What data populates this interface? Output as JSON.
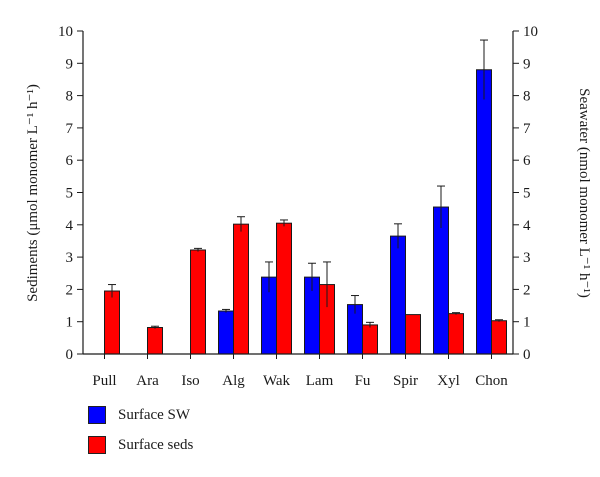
{
  "chart_data": {
    "type": "bar",
    "categories": [
      "Pull",
      "Ara",
      "Iso",
      "Alg",
      "Wak",
      "Lam",
      "Fu",
      "Spir",
      "Xyl",
      "Chon"
    ],
    "series": [
      {
        "name": "Surface SW",
        "color": "#0000ff",
        "axis": "right",
        "values": [
          null,
          null,
          null,
          1.33,
          2.38,
          2.38,
          1.53,
          3.65,
          4.55,
          8.8
        ],
        "errors": [
          null,
          null,
          null,
          0.05,
          0.47,
          0.43,
          0.28,
          0.38,
          0.65,
          0.92
        ]
      },
      {
        "name": "Surface seds",
        "color": "#ff0000",
        "axis": "left",
        "values": [
          1.95,
          0.82,
          3.22,
          4.02,
          4.05,
          2.15,
          0.9,
          1.22,
          1.25,
          1.03
        ],
        "errors": [
          0.2,
          0.04,
          0.05,
          0.23,
          0.1,
          0.7,
          0.08,
          0.0,
          0.03,
          0.03
        ]
      }
    ],
    "ylabel": "Sediments (μmol monomer L⁻¹ h⁻¹)",
    "y2label": "Seawater (nmol monomer L⁻¹ h⁻¹)",
    "ylim": [
      0,
      10
    ],
    "y2lim": [
      0,
      10
    ],
    "yticks": [
      "0",
      "1",
      "2",
      "3",
      "4",
      "5",
      "6",
      "7",
      "8",
      "9",
      "10"
    ],
    "y2ticks": [
      "0",
      "1",
      "2",
      "3",
      "4",
      "5",
      "6",
      "7",
      "8",
      "9",
      "10"
    ],
    "grid": false,
    "legend_position": "bottom-left"
  }
}
